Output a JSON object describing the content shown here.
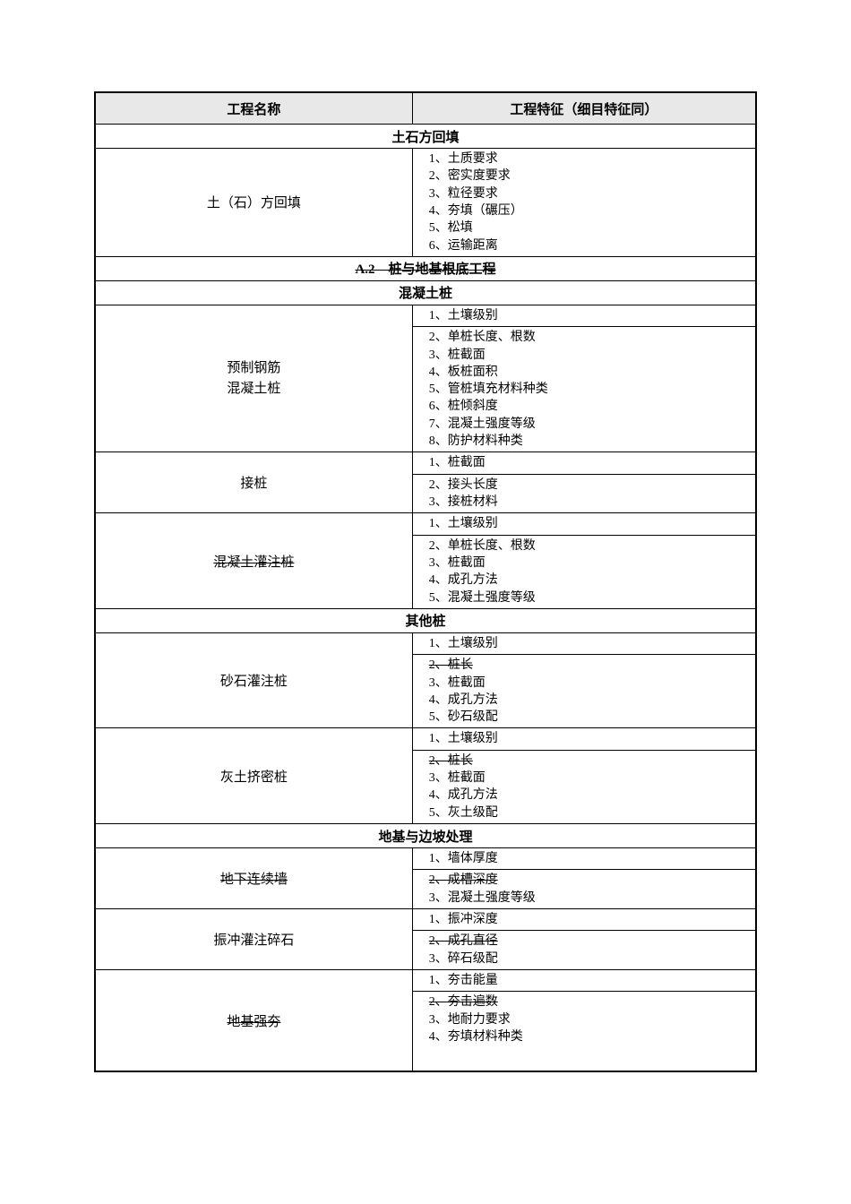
{
  "header": {
    "name_col": "工程名称",
    "feat_col": "工程特征（细目特征同）"
  },
  "sections": [
    {
      "title": "土石方回填",
      "title_strike": false,
      "rows": [
        {
          "name_lines": [
            "土（石）方回填"
          ],
          "name_strike": false,
          "row_strike": false,
          "features": [
            {
              "t": "1、土质要求",
              "s": false
            },
            {
              "t": "2、密实度要求",
              "s": false
            },
            {
              "t": "3、粒径要求",
              "s": false
            },
            {
              "t": "4、夯填（碾压）",
              "s": false
            },
            {
              "t": "5、松填",
              "s": false
            },
            {
              "t": "6、运输距离",
              "s": false
            }
          ]
        }
      ]
    },
    {
      "title": "A.2　桩与地基根底工程",
      "title_strike": true,
      "rows": []
    },
    {
      "title": "混凝土桩",
      "title_strike": false,
      "rows": [
        {
          "name_lines": [
            "预制钢筋",
            "混凝土桩"
          ],
          "name_strike": false,
          "row_strike": true,
          "features": [
            {
              "t": "1、土壤级别",
              "s": false
            },
            {
              "t": "2、单桩长度、根数",
              "s": false
            },
            {
              "t": "3、桩截面",
              "s": false
            },
            {
              "t": "4、板桩面积",
              "s": false
            },
            {
              "t": "5、管桩填充材料种类",
              "s": false
            },
            {
              "t": "6、桩倾斜度",
              "s": false
            },
            {
              "t": "7、混凝土强度等级",
              "s": false
            },
            {
              "t": "8、防护材料种类",
              "s": false
            }
          ]
        },
        {
          "name_lines": [
            "接桩"
          ],
          "name_strike": false,
          "row_strike": true,
          "features": [
            {
              "t": "1、桩截面",
              "s": false
            },
            {
              "t": "2、接头长度",
              "s": false
            },
            {
              "t": "3、接桩材料",
              "s": false
            }
          ]
        },
        {
          "name_lines": [
            "混凝土灌注桩"
          ],
          "name_strike": true,
          "row_strike": true,
          "features": [
            {
              "t": "1、土壤级别",
              "s": false
            },
            {
              "t": "2、单桩长度、根数",
              "s": false
            },
            {
              "t": "3、桩截面",
              "s": false
            },
            {
              "t": "4、成孔方法",
              "s": false
            },
            {
              "t": "5、混凝土强度等级",
              "s": false
            }
          ]
        }
      ]
    },
    {
      "title": "其他桩",
      "title_strike": false,
      "rows": [
        {
          "name_lines": [
            "砂石灌注桩"
          ],
          "name_strike": false,
          "row_strike": true,
          "features": [
            {
              "t": "1、土壤级别",
              "s": false
            },
            {
              "t": "2、桩长",
              "s": true
            },
            {
              "t": "3、桩截面",
              "s": false
            },
            {
              "t": "4、成孔方法",
              "s": false
            },
            {
              "t": "5、砂石级配",
              "s": false
            }
          ]
        },
        {
          "name_lines": [
            "灰土挤密桩"
          ],
          "name_strike": false,
          "row_strike": true,
          "features": [
            {
              "t": "1、土壤级别",
              "s": false
            },
            {
              "t": "2、桩长",
              "s": true
            },
            {
              "t": "3、桩截面",
              "s": false
            },
            {
              "t": "4、成孔方法",
              "s": false
            },
            {
              "t": "5、灰土级配",
              "s": false
            }
          ]
        }
      ]
    },
    {
      "title": "地基与边坡处理",
      "title_strike": false,
      "rows": [
        {
          "name_lines": [
            "地下连续墙"
          ],
          "name_strike": true,
          "row_strike": true,
          "features": [
            {
              "t": "1、墙体厚度",
              "s": false
            },
            {
              "t": "2、成槽深度",
              "s": true
            },
            {
              "t": "3、混凝土强度等级",
              "s": false
            }
          ]
        },
        {
          "name_lines": [
            "振冲灌注碎石"
          ],
          "name_strike": false,
          "row_strike": true,
          "features": [
            {
              "t": "1、振冲深度",
              "s": false
            },
            {
              "t": "2、成孔直径",
              "s": true
            },
            {
              "t": "3、碎石级配",
              "s": false
            }
          ]
        },
        {
          "name_lines": [
            "地基强夯"
          ],
          "name_strike": true,
          "row_strike": true,
          "features": [
            {
              "t": "1、夯击能量",
              "s": false
            },
            {
              "t": "2、夯击遍数",
              "s": true
            },
            {
              "t": "3、地耐力要求",
              "s": false
            },
            {
              "t": "4、夯填材料种类",
              "s": false
            }
          ],
          "pad_bottom": 28
        }
      ]
    }
  ]
}
